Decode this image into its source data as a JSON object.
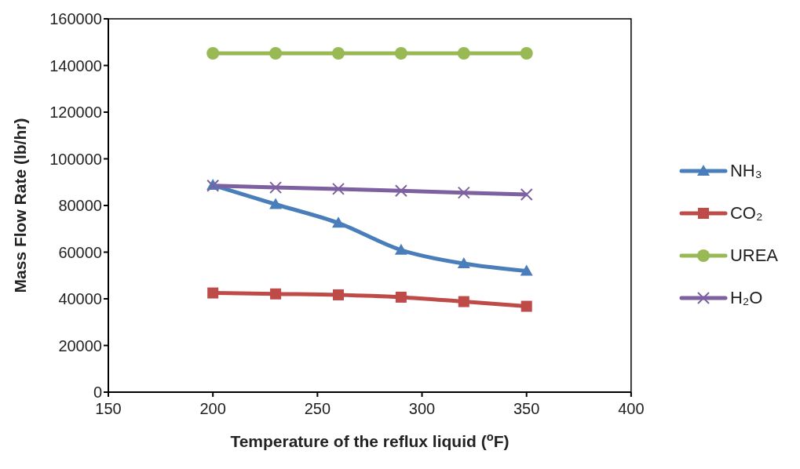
{
  "chart_data": {
    "type": "line",
    "xlabel": "Temperature of the reflux liquid ($^{o}$F)",
    "ylabel": "Mass Flow Rate (lb/hr)",
    "x": [
      200,
      230,
      260,
      290,
      320,
      350
    ],
    "series": [
      {
        "name": "NH₃",
        "color": "#4a7ebb",
        "marker": "triangle",
        "values": [
          88700,
          80500,
          72500,
          60900,
          55100,
          51900
        ]
      },
      {
        "name": "CO₂",
        "color": "#be4b48",
        "marker": "square",
        "values": [
          42500,
          42100,
          41700,
          40700,
          38800,
          36800
        ]
      },
      {
        "name": "UREA",
        "color": "#98b954",
        "marker": "circle",
        "values": [
          145200,
          145200,
          145200,
          145200,
          145200,
          145200
        ]
      },
      {
        "name": "H₂O",
        "color": "#7d60a0",
        "marker": "cross",
        "values": [
          88500,
          87700,
          87100,
          86300,
          85500,
          84700
        ]
      }
    ],
    "xlim": [
      150,
      400
    ],
    "xticks": [
      150,
      200,
      250,
      300,
      350,
      400
    ],
    "ylim": [
      0,
      160000
    ],
    "yticks": [
      0,
      20000,
      40000,
      60000,
      80000,
      100000,
      120000,
      140000,
      160000
    ],
    "grid": false,
    "legend": "right",
    "line_style": "solid"
  }
}
